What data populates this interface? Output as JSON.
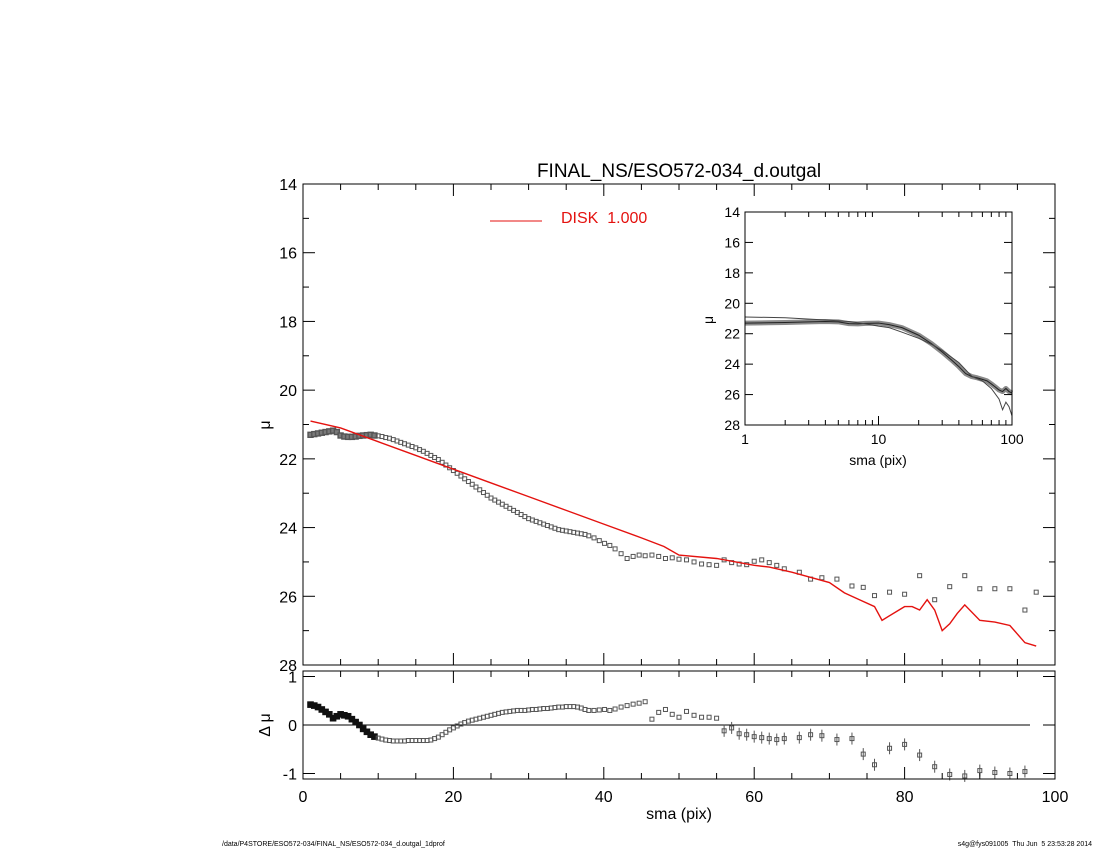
{
  "chart_data": [
    {
      "panel": "main",
      "type": "scatter",
      "title": "FINAL_NS/ESO572-034_d.outgal",
      "xlabel": "",
      "ylabel": "μ",
      "xlim": [
        0,
        100
      ],
      "ylim": [
        28,
        14
      ],
      "y_inverted": true,
      "yticks": [
        14,
        16,
        18,
        20,
        22,
        24,
        26,
        28
      ],
      "legend": {
        "placement": "top-left",
        "label": "DISK  1.000",
        "color": "#e4120f"
      },
      "series": [
        {
          "kind": "points",
          "color": "#555555",
          "x": [
            1.0,
            1.5,
            2.0,
            2.5,
            3.0,
            3.5,
            4.0,
            4.5,
            5.0,
            5.5,
            6.0,
            6.5,
            7.0,
            7.5,
            8.0,
            8.5,
            9.0,
            9.5,
            10.0,
            10.5,
            11.0,
            11.5,
            12.0,
            12.5,
            13.0,
            13.5,
            14.0,
            14.5,
            15.0,
            15.5,
            16.0,
            16.5,
            17.0,
            17.5,
            18.0,
            18.5,
            19.0,
            19.5,
            20.0,
            20.5,
            21.0,
            21.5,
            22.0,
            22.5,
            23.0,
            23.5,
            24.0,
            24.5,
            25.0,
            25.5,
            26.0,
            26.5,
            27.0,
            27.5,
            28.0,
            28.5,
            29.0,
            29.5,
            30.0,
            30.5,
            31.0,
            31.5,
            32.0,
            32.5,
            33.0,
            33.5,
            34.0,
            34.5,
            35.0,
            35.5,
            36.0,
            36.5,
            37.0,
            37.5,
            38.0,
            38.7,
            39.4,
            40.1,
            40.8,
            41.5,
            42.3,
            43.1,
            43.9,
            44.7,
            45.5,
            46.4,
            47.3,
            48.2,
            49.1,
            50.0,
            51.0,
            52.0,
            53.0,
            54.0,
            55.0,
            56.0,
            57.0,
            58.0,
            59.0,
            60.0,
            61.0,
            62.0,
            63.0,
            64.0,
            66.0,
            67.5,
            69.0,
            71.0,
            73.0,
            74.5,
            76.0,
            78.0,
            80.0,
            82.0,
            84.0,
            86.0,
            88.0,
            90.0,
            92.0,
            94.0,
            96.0,
            97.5
          ],
          "y": [
            21.3,
            21.28,
            21.26,
            21.24,
            21.22,
            21.2,
            21.18,
            21.22,
            21.32,
            21.35,
            21.36,
            21.36,
            21.35,
            21.33,
            21.32,
            21.31,
            21.3,
            21.32,
            21.33,
            21.35,
            21.38,
            21.4,
            21.44,
            21.48,
            21.52,
            21.56,
            21.6,
            21.64,
            21.68,
            21.73,
            21.78,
            21.84,
            21.9,
            21.96,
            22.02,
            22.1,
            22.18,
            22.26,
            22.34,
            22.42,
            22.5,
            22.58,
            22.66,
            22.74,
            22.82,
            22.9,
            22.98,
            23.06,
            23.14,
            23.2,
            23.26,
            23.32,
            23.38,
            23.44,
            23.5,
            23.56,
            23.62,
            23.68,
            23.74,
            23.78,
            23.82,
            23.86,
            23.9,
            23.94,
            23.98,
            24.02,
            24.06,
            24.08,
            24.1,
            24.12,
            24.14,
            24.16,
            24.18,
            24.2,
            24.24,
            24.3,
            24.38,
            24.46,
            24.52,
            24.62,
            24.76,
            24.9,
            24.84,
            24.8,
            24.82,
            24.8,
            24.84,
            24.9,
            24.88,
            24.92,
            24.94,
            25.0,
            25.06,
            25.08,
            25.1,
            24.94,
            25.02,
            25.06,
            25.08,
            24.98,
            24.94,
            25.02,
            25.1,
            25.2,
            25.3,
            25.5,
            25.46,
            25.5,
            25.7,
            25.74,
            25.98,
            25.88,
            25.94,
            25.4,
            26.1,
            25.72,
            25.4,
            25.78,
            25.78,
            25.78,
            26.4,
            25.88
          ]
        },
        {
          "kind": "line",
          "name": "DISK  1.000",
          "color": "#e4120f",
          "x": [
            1,
            5,
            10,
            15,
            20,
            25,
            30,
            35,
            40,
            45,
            48,
            50,
            55,
            60,
            62,
            65,
            70,
            72,
            74,
            76,
            77,
            80,
            81,
            82,
            83,
            84,
            85,
            86,
            87,
            88,
            90,
            92,
            94,
            95,
            96,
            97.5
          ],
          "y": [
            20.9,
            21.1,
            21.5,
            21.9,
            22.3,
            22.7,
            23.1,
            23.5,
            23.9,
            24.3,
            24.55,
            24.8,
            24.9,
            25.1,
            25.15,
            25.3,
            25.6,
            25.9,
            26.1,
            26.3,
            26.7,
            26.3,
            26.3,
            26.4,
            26.1,
            26.4,
            27.0,
            26.8,
            26.5,
            26.25,
            26.7,
            26.75,
            26.85,
            27.1,
            27.35,
            27.45
          ]
        }
      ]
    },
    {
      "panel": "inset",
      "type": "line",
      "title": "",
      "xlabel": "sma (pix)",
      "ylabel": "μ",
      "xscale": "log",
      "xlim": [
        1,
        100
      ],
      "ylim": [
        28,
        14
      ],
      "xticks": [
        "1",
        "10",
        "100"
      ],
      "yticks": [
        14,
        16,
        18,
        20,
        22,
        24,
        26,
        28
      ],
      "series": [
        {
          "kind": "band",
          "color": "#555555",
          "x": [
            1,
            1.5,
            2,
            3,
            4,
            5,
            6,
            7,
            8,
            10,
            12,
            15,
            20,
            25,
            30,
            35,
            40,
            45,
            50,
            55,
            60,
            65,
            70,
            75,
            80,
            85,
            90,
            95,
            100
          ],
          "y": [
            21.3,
            21.28,
            21.26,
            21.22,
            21.2,
            21.22,
            21.34,
            21.35,
            21.32,
            21.3,
            21.4,
            21.6,
            22.1,
            22.66,
            23.2,
            23.7,
            24.16,
            24.62,
            24.82,
            24.9,
            25.0,
            25.1,
            25.3,
            25.5,
            25.7,
            25.8,
            25.6,
            25.8,
            25.9
          ]
        },
        {
          "kind": "line",
          "color": "#444444",
          "x": [
            1,
            2,
            4,
            6,
            8,
            10,
            12,
            15,
            20,
            25,
            30,
            40,
            50,
            60,
            70,
            80,
            85,
            90,
            95,
            100
          ],
          "y": [
            20.9,
            20.95,
            21.1,
            21.2,
            21.35,
            21.5,
            21.6,
            21.9,
            22.3,
            22.7,
            23.1,
            23.9,
            24.8,
            25.1,
            25.6,
            26.3,
            27.0,
            26.5,
            26.8,
            27.4
          ]
        }
      ]
    },
    {
      "panel": "residuals",
      "type": "scatter",
      "title": "",
      "xlabel": "sma (pix)",
      "ylabel": "Δ μ",
      "xlim": [
        0,
        100
      ],
      "ylim": [
        -1.05,
        1.0
      ],
      "yticks": [
        1,
        0,
        -1
      ],
      "xticks": [
        0,
        20,
        40,
        60,
        80,
        100
      ],
      "reference_line": 0,
      "series": [
        {
          "kind": "points",
          "color": "#555555",
          "x": [
            1.0,
            1.5,
            2.0,
            2.5,
            3.0,
            3.5,
            4.0,
            4.5,
            5.0,
            5.5,
            6.0,
            6.5,
            7.0,
            7.5,
            8.0,
            8.5,
            9.0,
            9.5,
            10.0,
            10.5,
            11.0,
            11.5,
            12.0,
            12.5,
            13.0,
            13.5,
            14.0,
            14.5,
            15.0,
            15.5,
            16.0,
            16.5,
            17.0,
            17.5,
            18.0,
            18.5,
            19.0,
            19.5,
            20.0,
            20.5,
            21.0,
            21.5,
            22.0,
            22.5,
            23.0,
            23.5,
            24.0,
            24.5,
            25.0,
            25.5,
            26.0,
            26.5,
            27.0,
            27.5,
            28.0,
            28.5,
            29.0,
            29.5,
            30.0,
            30.5,
            31.0,
            31.5,
            32.0,
            32.5,
            33.0,
            33.5,
            34.0,
            34.5,
            35.0,
            35.5,
            36.0,
            36.5,
            37.0,
            37.5,
            38.0,
            38.7,
            39.4,
            40.1,
            40.8,
            41.5,
            42.3,
            43.1,
            43.9,
            44.7,
            45.5,
            46.4,
            47.3,
            48.2,
            49.1,
            50.0,
            51.0,
            52.0,
            53.0,
            54.0,
            55.0,
            56.0,
            57.0,
            58.0,
            59.0,
            60.0,
            61.0,
            62.0,
            63.0,
            64.0,
            66.0,
            67.5,
            69.0,
            71.0,
            73.0,
            74.5,
            76.0,
            78.0,
            80.0,
            82.0,
            84.0,
            86.0,
            88.0,
            90.0,
            92.0,
            94.0,
            96.0
          ],
          "y": [
            0.42,
            0.4,
            0.37,
            0.32,
            0.27,
            0.22,
            0.14,
            0.18,
            0.22,
            0.2,
            0.18,
            0.12,
            0.06,
            0.0,
            -0.08,
            -0.14,
            -0.2,
            -0.24,
            -0.27,
            -0.29,
            -0.31,
            -0.32,
            -0.33,
            -0.33,
            -0.33,
            -0.33,
            -0.32,
            -0.32,
            -0.32,
            -0.32,
            -0.32,
            -0.32,
            -0.31,
            -0.28,
            -0.25,
            -0.2,
            -0.15,
            -0.1,
            -0.06,
            -0.02,
            0.02,
            0.05,
            0.08,
            0.1,
            0.12,
            0.14,
            0.16,
            0.18,
            0.2,
            0.22,
            0.24,
            0.26,
            0.27,
            0.28,
            0.29,
            0.3,
            0.3,
            0.3,
            0.31,
            0.32,
            0.32,
            0.33,
            0.34,
            0.34,
            0.35,
            0.36,
            0.37,
            0.37,
            0.38,
            0.38,
            0.38,
            0.37,
            0.35,
            0.32,
            0.3,
            0.3,
            0.31,
            0.32,
            0.3,
            0.33,
            0.37,
            0.4,
            0.43,
            0.45,
            0.48,
            0.12,
            0.26,
            0.32,
            0.22,
            0.16,
            0.28,
            0.2,
            0.16,
            0.16,
            0.14,
            -0.12,
            -0.06,
            -0.18,
            -0.2,
            -0.24,
            -0.26,
            -0.28,
            -0.3,
            -0.28,
            -0.26,
            -0.2,
            -0.22,
            -0.3,
            -0.28,
            -0.6,
            -0.82,
            -0.48,
            -0.4,
            -0.62,
            -0.86,
            -1.02,
            -1.05,
            -0.94,
            -0.98,
            -1.0,
            -0.96
          ]
        }
      ]
    }
  ],
  "footer": {
    "left": "/data/P4STORE/ESO572-034/FINAL_NS/ESO572-034_d.outgal_1dprof",
    "right": "s4g@fys091005  Thu Jun  5 23:53:28 2014"
  }
}
